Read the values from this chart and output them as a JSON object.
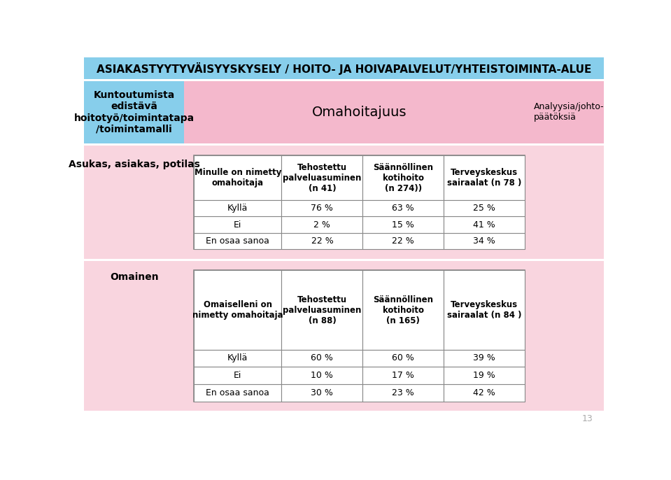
{
  "title": "ASIAKASTYYTYVÄISYYSKYSELY / HOITO- JA HOIVAPALVELUT/YHTEISTOIMINTA-ALUE",
  "col1_header": "Kuntoutumista\nedistävä\nhoitotyö/toimintatapa\n/toimintamalli",
  "col2_header": "Omahoitajuus",
  "col3_header": "Analyysia/johto-\npäätöksiä",
  "row1_label": "Asukas, asiakas, potilas",
  "row2_label": "Omainen",
  "table1_header_col1": "Minulle on nimetty\nomahoitaja",
  "table1_header_col2": "Tehostettu\npalveluasuminen\n(n 41)",
  "table1_header_col3": "Säännöllinen\nkotihoito\n(n 274))",
  "table1_header_col4": "Terveyskeskus\nsairaalat (n 78 )",
  "table1_rows": [
    [
      "Kyllä",
      "76 %",
      "63 %",
      "25 %"
    ],
    [
      "Ei",
      "2 %",
      "15 %",
      "41 %"
    ],
    [
      "En osaa sanoa",
      "22 %",
      "22 %",
      "34 %"
    ]
  ],
  "table2_header_col1": "Omaiselleni on\nnimetty omahoitaja",
  "table2_header_col2": "Tehostettu\npalveluasuminen\n(n 88)",
  "table2_header_col3": "Säännöllinen\nkotihoito\n(n 165)",
  "table2_header_col4": "Terveyskeskus\nsairaalat (n 84 )",
  "table2_rows": [
    [
      "Kyllä",
      "60 %",
      "60 %",
      "39 %"
    ],
    [
      "Ei",
      "10 %",
      "17 %",
      "19 %"
    ],
    [
      "En osaa sanoa",
      "30 %",
      "23 %",
      "42 %"
    ]
  ],
  "title_bg": "#87CEEB",
  "col1_bg": "#87CEEB",
  "pink_bg": "#F4B8CC",
  "light_pink_bg": "#F9D5DF",
  "white": "#FFFFFF",
  "border_color": "#888888",
  "page_number": "13"
}
